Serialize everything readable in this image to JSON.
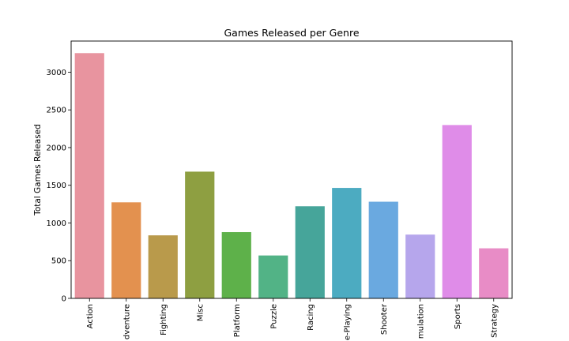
{
  "chart_data": {
    "type": "bar",
    "title": "Games Released per Genre",
    "xlabel": "",
    "ylabel": "Total Games Released",
    "categories": [
      "Action",
      "Adventure",
      "Fighting",
      "Misc",
      "Platform",
      "Puzzle",
      "Racing",
      "Role-Playing",
      "Shooter",
      "Simulation",
      "Sports",
      "Strategy"
    ],
    "tick_labels": [
      "Action",
      "dventure",
      "Fighting",
      "Misc",
      "Platform",
      "Puzzle",
      "Racing",
      "e-Playing",
      "Shooter",
      "mulation",
      "Sports",
      "Strategy"
    ],
    "values": [
      3253,
      1274,
      836,
      1681,
      879,
      569,
      1222,
      1465,
      1282,
      846,
      2299,
      664
    ],
    "colors": [
      "#e8949f",
      "#e3914f",
      "#b99a4b",
      "#8e9f41",
      "#5eb14a",
      "#52b386",
      "#46a59a",
      "#4cabc1",
      "#6aa9e0",
      "#b6a6ec",
      "#df8ce8",
      "#e88cc6"
    ],
    "ylim": [
      0,
      3413
    ],
    "yticks": [
      0,
      500,
      1000,
      1500,
      2000,
      2500,
      3000
    ],
    "grid": false,
    "legend": "none"
  }
}
